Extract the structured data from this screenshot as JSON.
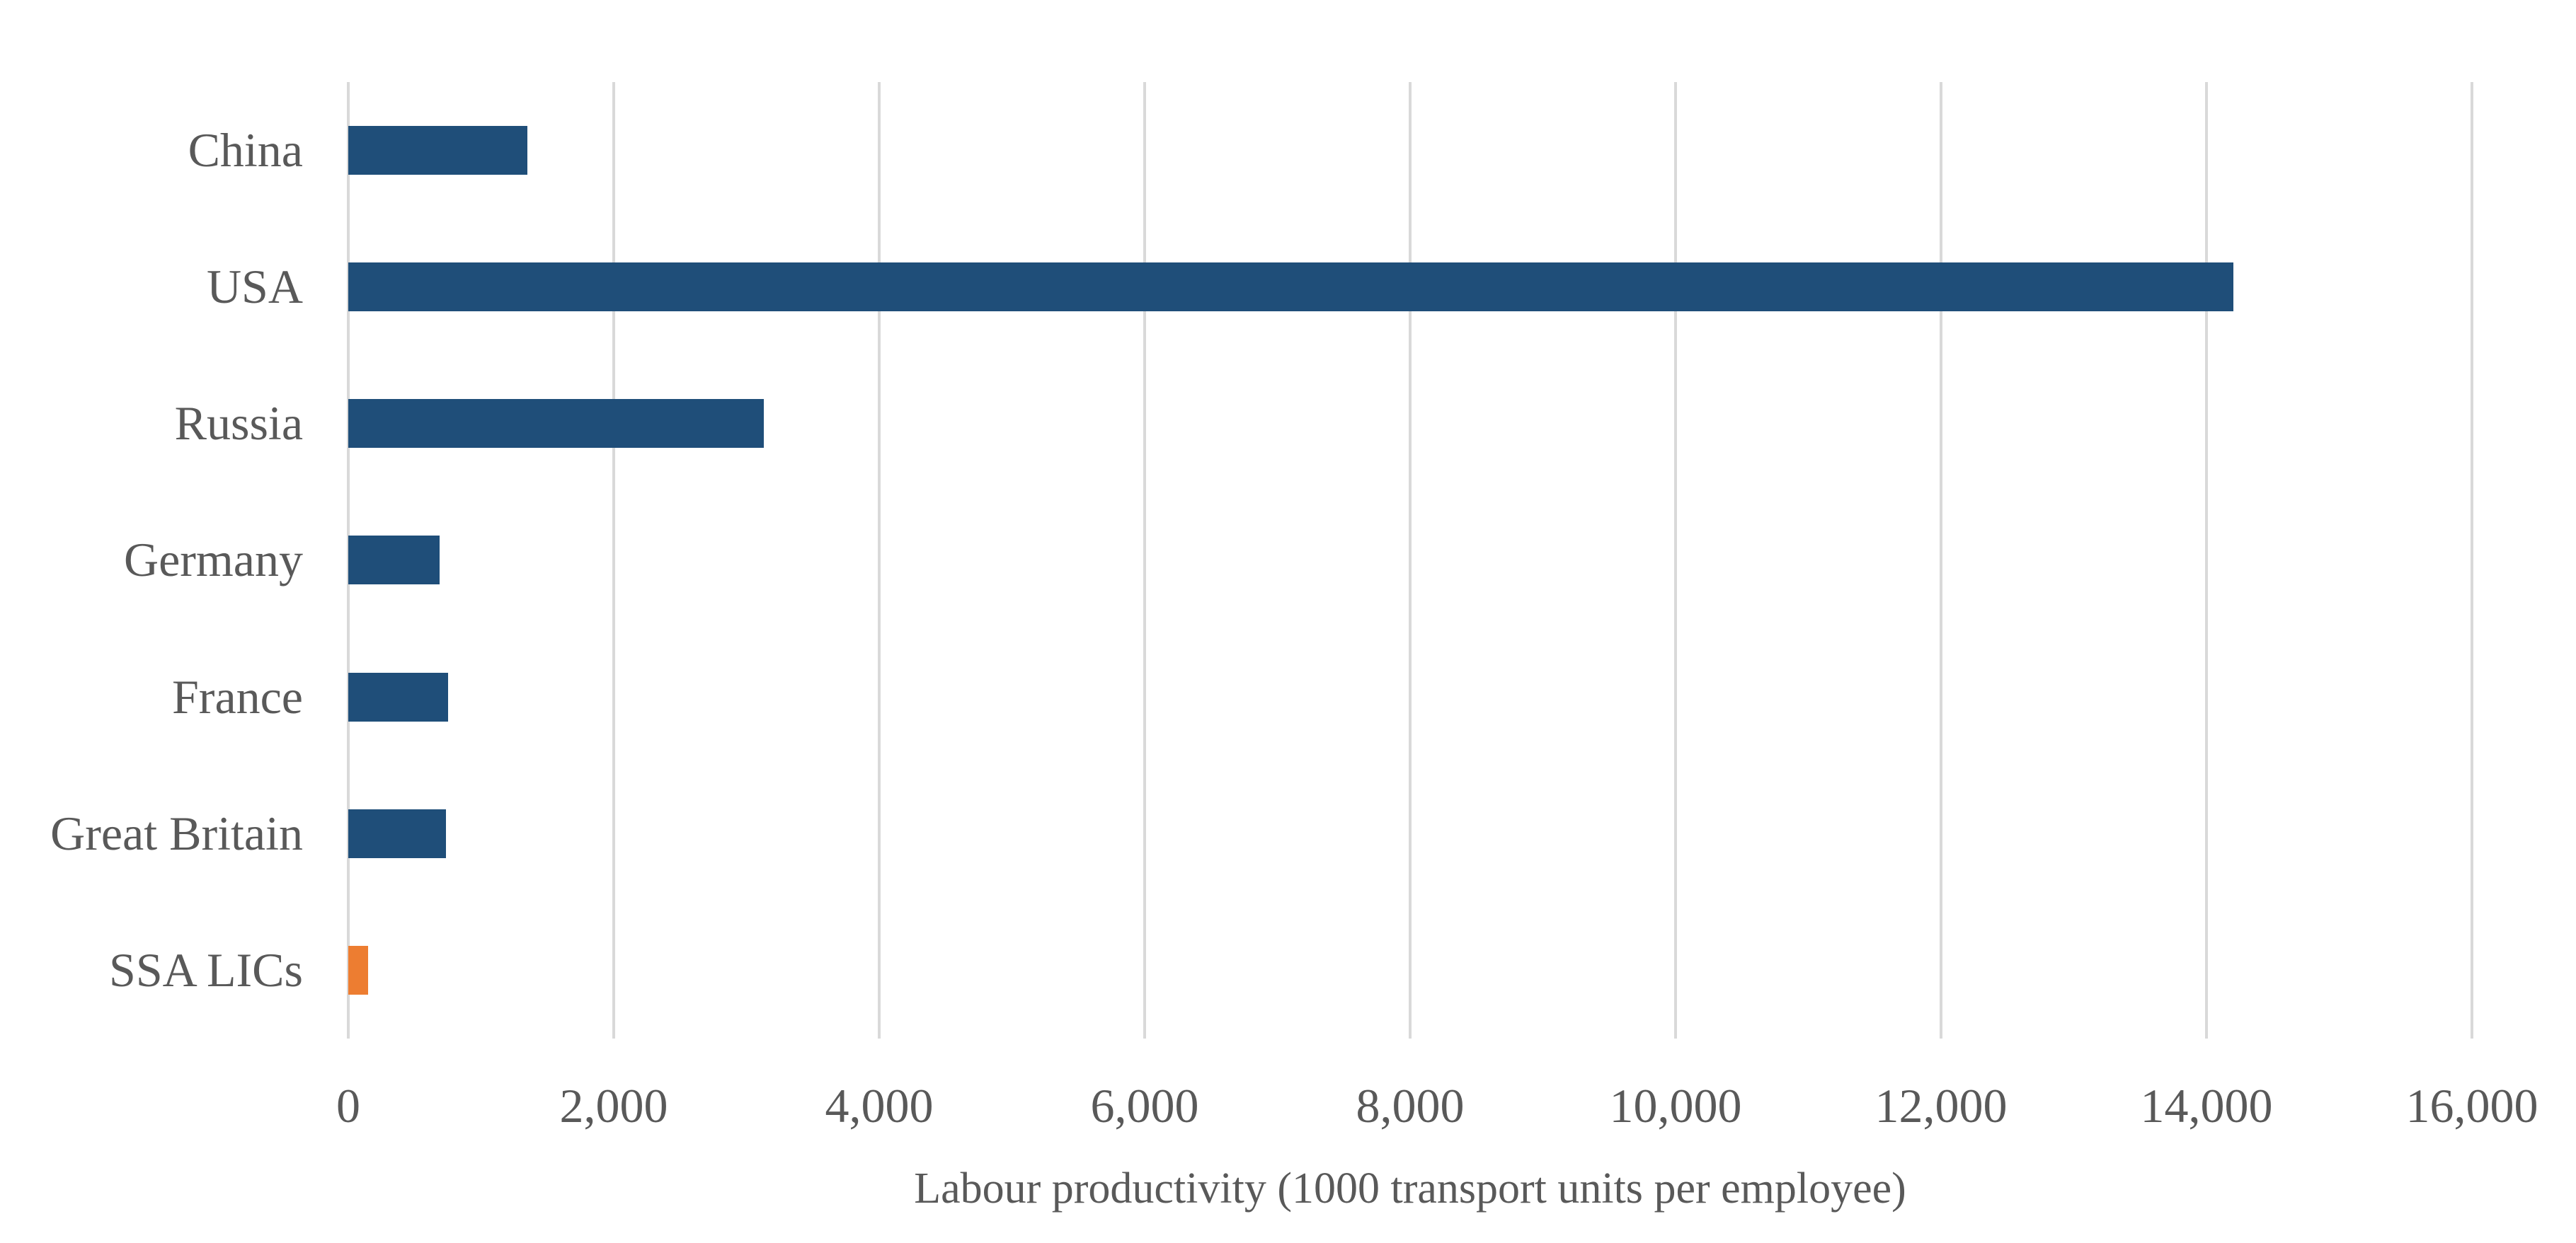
{
  "chart_data": {
    "type": "bar",
    "orientation": "horizontal",
    "title": "",
    "categories": [
      "China",
      "USA",
      "Russia",
      "Germany",
      "France",
      "Great Britain",
      "SSA LICs"
    ],
    "values": [
      1350,
      14200,
      3130,
      690,
      750,
      735,
      150
    ],
    "bar_colors": [
      "#1F4E79",
      "#1F4E79",
      "#1F4E79",
      "#1F4E79",
      "#1F4E79",
      "#1F4E79",
      "#ED7D31"
    ],
    "xlabel": "Labour productivity (1000 transport units per employee)",
    "ylabel": "",
    "xlim": [
      0,
      16000
    ],
    "xticks": [
      0,
      2000,
      4000,
      6000,
      8000,
      10000,
      12000,
      14000,
      16000
    ],
    "tick_labels": [
      "0",
      "2,000",
      "4,000",
      "6,000",
      "8,000",
      "10,000",
      "12,000",
      "14,000",
      "16,000"
    ],
    "grid": "vertical-gridlines-only",
    "legend": "none"
  },
  "colors": {
    "bar_blue": "#1F4E79",
    "bar_orange": "#ED7D31",
    "gridline": "#D9D9D9",
    "text": "#595959",
    "background": "#FFFFFF"
  }
}
